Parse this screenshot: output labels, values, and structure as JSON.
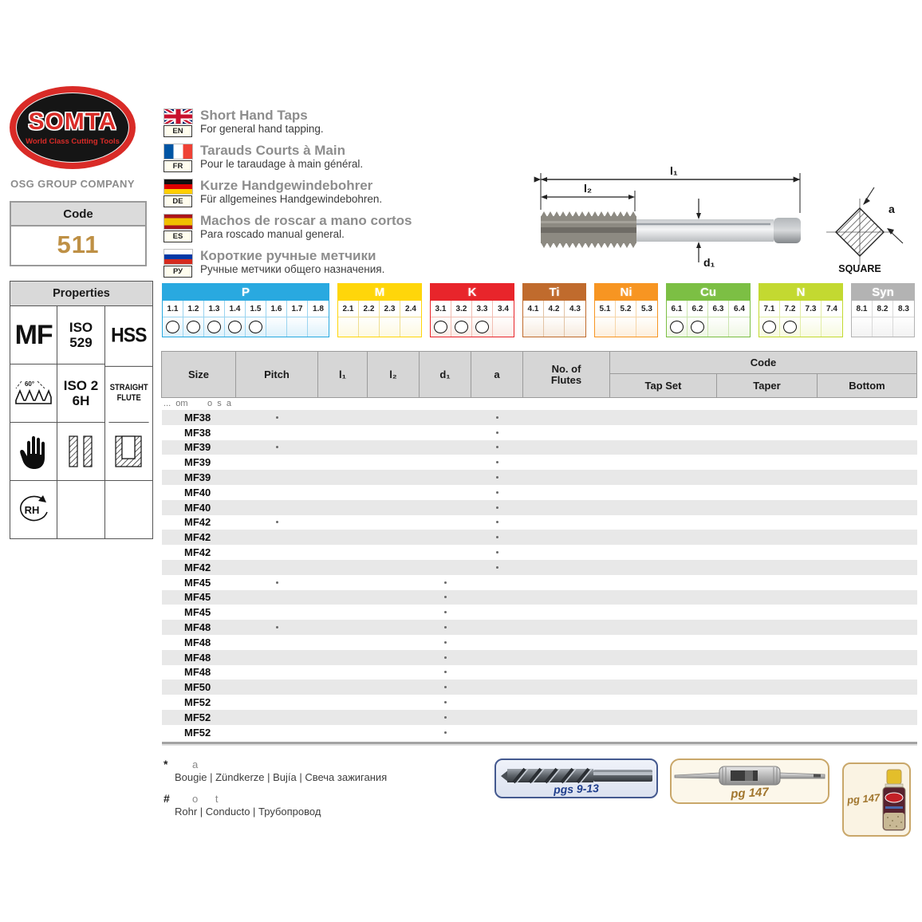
{
  "brand": {
    "name": "SOMTA",
    "tagline": "World Class Cutting Tools",
    "company": "OSG GROUP COMPANY"
  },
  "code_box": {
    "label": "Code",
    "value": "511"
  },
  "languages": [
    {
      "id": "en",
      "label": "EN",
      "title": "Short Hand Taps",
      "subtitle": "For general hand tapping."
    },
    {
      "id": "fr",
      "label": "FR",
      "title": "Tarauds Courts à Main",
      "subtitle": "Pour le taraudage à main général."
    },
    {
      "id": "de",
      "label": "DE",
      "title": "Kurze Handgewindebohrer",
      "subtitle": "Für allgemeines Handgewindebohren."
    },
    {
      "id": "es",
      "label": "ES",
      "title": "Machos de roscar a mano cortos",
      "subtitle": "Para roscado manual general."
    },
    {
      "id": "ru",
      "label": "РУ",
      "title": "Короткие ручные метчики",
      "subtitle": "Ручные метчики общего назначения."
    }
  ],
  "diagram": {
    "l1": "l₁",
    "l2": "l₂",
    "d1": "d₁",
    "a": "a",
    "square": "SQUARE"
  },
  "properties": {
    "header": "Properties",
    "cells": [
      {
        "text": "MF",
        "style": "xl"
      },
      {
        "text": "ISO\n529",
        "style": "md"
      },
      {
        "text": "HSS",
        "style": "heavy"
      },
      {
        "icon": "thread-profile-icon",
        "label": "60°"
      },
      {
        "text": "ISO 2\n6H",
        "style": "md"
      },
      {
        "text": "STRAIGHT\nFLUTE",
        "style": "sm"
      },
      {
        "icon": "hand-icon"
      },
      {
        "icon": "through-hole-icon"
      },
      {
        "icon": "blind-hole-icon"
      },
      {
        "icon": "rh-rotation-icon",
        "label": "RH"
      },
      {},
      {}
    ]
  },
  "materials": {
    "groups": [
      {
        "name": "P",
        "color": "#29A9E0",
        "border": "#9AD4F0",
        "tint": "#DDF1FB",
        "grades": [
          "1.1",
          "1.2",
          "1.3",
          "1.4",
          "1.5",
          "1.6",
          "1.7",
          "1.8"
        ],
        "marked": [
          "1.1",
          "1.2",
          "1.3",
          "1.4",
          "1.5"
        ]
      },
      {
        "name": "M",
        "color": "#FFD60A",
        "border": "#EFDE8E",
        "tint": "#FDF9E0",
        "grades": [
          "2.1",
          "2.2",
          "2.3",
          "2.4"
        ],
        "marked": []
      },
      {
        "name": "K",
        "color": "#E8252B",
        "border": "#F2BDB2",
        "tint": "#FBEBE6",
        "grades": [
          "3.1",
          "3.2",
          "3.3",
          "3.4"
        ],
        "marked": [
          "3.1",
          "3.2",
          "3.3"
        ]
      },
      {
        "name": "Ti",
        "color": "#C06B2D",
        "border": "#E2C3A4",
        "tint": "#F6EADD",
        "grades": [
          "4.1",
          "4.2",
          "4.3"
        ],
        "marked": []
      },
      {
        "name": "Ni",
        "color": "#F79522",
        "border": "#F6D5A8",
        "tint": "#FDEFDC",
        "grades": [
          "5.1",
          "5.2",
          "5.3"
        ],
        "marked": []
      },
      {
        "name": "Cu",
        "color": "#7CBF44",
        "border": "#CBE5AF",
        "tint": "#EFF7E4",
        "grades": [
          "6.1",
          "6.2",
          "6.3",
          "6.4"
        ],
        "marked": [
          "6.1",
          "6.2"
        ]
      },
      {
        "name": "N",
        "color": "#C3D931",
        "border": "#E2EDA6",
        "tint": "#F7FADF",
        "grades": [
          "7.1",
          "7.2",
          "7.3",
          "7.4"
        ],
        "marked": [
          "7.1",
          "7.2"
        ]
      },
      {
        "name": "Syn",
        "color": "#B3B3B3",
        "border": "#D9D9D9",
        "tint": "#F2F2F2",
        "grades": [
          "8.1",
          "8.2",
          "8.3"
        ],
        "marked": []
      }
    ]
  },
  "table": {
    "headers": {
      "size": "Size",
      "pitch": "Pitch",
      "l1": "l₁",
      "l2": "l₂",
      "d1": "d₁",
      "a": "a",
      "flutes": "No. of\nFlutes",
      "code": "Code",
      "tap_set": "Tap Set",
      "taper": "Taper",
      "bottom": "Bottom"
    },
    "note": "...  om        o  s  a",
    "rows": [
      {
        "size": "MF38",
        "dots": [
          "pitch",
          "a"
        ]
      },
      {
        "size": "MF38",
        "dots": [
          "a"
        ]
      },
      {
        "size": "MF39",
        "dots": [
          "pitch",
          "a"
        ]
      },
      {
        "size": "MF39",
        "dots": [
          "a"
        ]
      },
      {
        "size": "MF39",
        "dots": [
          "a"
        ]
      },
      {
        "size": "MF40",
        "dots": [
          "a"
        ]
      },
      {
        "size": "MF40",
        "dots": [
          "a"
        ]
      },
      {
        "size": "MF42",
        "dots": [
          "pitch",
          "a"
        ]
      },
      {
        "size": "MF42",
        "dots": [
          "a"
        ]
      },
      {
        "size": "MF42",
        "dots": [
          "a"
        ]
      },
      {
        "size": "MF42",
        "dots": [
          "a"
        ]
      },
      {
        "size": "MF45",
        "dots": [
          "pitch",
          "d1"
        ]
      },
      {
        "size": "MF45",
        "dots": [
          "d1"
        ]
      },
      {
        "size": "MF45",
        "dots": [
          "d1"
        ]
      },
      {
        "size": "MF48",
        "dots": [
          "pitch",
          "d1"
        ]
      },
      {
        "size": "MF48",
        "dots": [
          "d1"
        ]
      },
      {
        "size": "MF48",
        "dots": [
          "d1"
        ]
      },
      {
        "size": "MF48",
        "dots": [
          "d1"
        ]
      },
      {
        "size": "MF50",
        "dots": [
          "d1"
        ]
      },
      {
        "size": "MF52",
        "dots": [
          "d1"
        ]
      },
      {
        "size": "MF52",
        "dots": [
          "d1"
        ]
      },
      {
        "size": "MF52",
        "dots": [
          "d1"
        ]
      }
    ]
  },
  "footnotes": [
    {
      "marker": "*",
      "faded": "a",
      "translations": "Bougie | Zündkerze | Bujía | Свеча зажигания"
    },
    {
      "marker": "#",
      "faded": "o      t",
      "translations": "Rohr | Conducto | Трубопровод"
    }
  ],
  "related": {
    "drills_label": "pgs 9-13",
    "wrench_label": "pg 147",
    "spray_label": "pg 147"
  }
}
